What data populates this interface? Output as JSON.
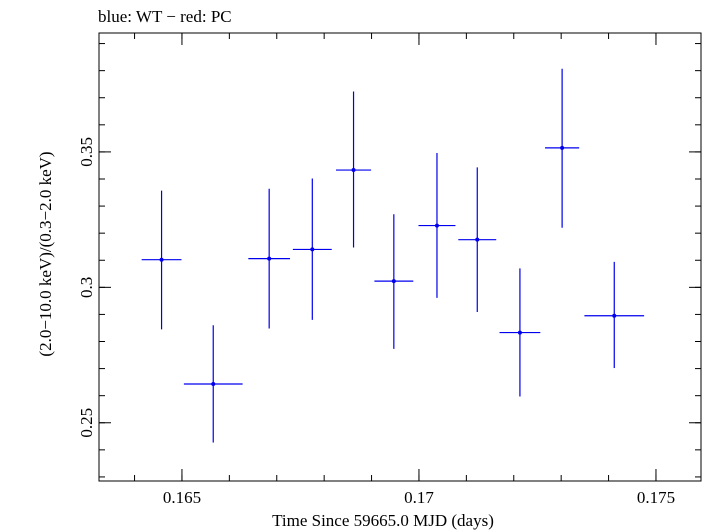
{
  "chart_data": {
    "type": "scatter",
    "title": "blue: WT − red: PC",
    "xlabel": "Time Since 59665.0 MJD (days)",
    "ylabel": "(2.0−10.0 keV)/(0.3−2.0 keV)",
    "xlim": [
      0.16325,
      0.17595
    ],
    "ylim": [
      0.2285,
      0.3939
    ],
    "x_ticks": [
      {
        "value": 0.165,
        "label": "0.165"
      },
      {
        "value": 0.17,
        "label": "0.17"
      },
      {
        "value": 0.175,
        "label": "0.175"
      }
    ],
    "y_ticks": [
      {
        "value": 0.25,
        "label": "0.25"
      },
      {
        "value": 0.3,
        "label": "0.3"
      },
      {
        "value": 0.35,
        "label": "0.35"
      }
    ],
    "x_minor_step": 0.001,
    "y_minor_step": 0.01,
    "grid": false,
    "series": [
      {
        "color": "#0000ee",
        "points": [
          {
            "x": 0.16457,
            "y": 0.3102,
            "xerr": 0.00042,
            "ylo": 0.2845,
            "yhi": 0.3357
          },
          {
            "x": 0.16566,
            "y": 0.2643,
            "xerr": 0.00062,
            "ylo": 0.2427,
            "yhi": 0.286
          },
          {
            "x": 0.16684,
            "y": 0.3106,
            "xerr": 0.00044,
            "ylo": 0.2848,
            "yhi": 0.3364
          },
          {
            "x": 0.16775,
            "y": 0.314,
            "xerr": 0.00041,
            "ylo": 0.288,
            "yhi": 0.3402
          },
          {
            "x": 0.16862,
            "y": 0.3433,
            "xerr": 0.00037,
            "ylo": 0.3147,
            "yhi": 0.3723
          },
          {
            "x": 0.16947,
            "y": 0.3023,
            "xerr": 0.00041,
            "ylo": 0.2773,
            "yhi": 0.327
          },
          {
            "x": 0.17038,
            "y": 0.3228,
            "xerr": 0.00039,
            "ylo": 0.2961,
            "yhi": 0.3496
          },
          {
            "x": 0.17123,
            "y": 0.3176,
            "xerr": 0.0004,
            "ylo": 0.2909,
            "yhi": 0.3443
          },
          {
            "x": 0.17213,
            "y": 0.2833,
            "xerr": 0.00043,
            "ylo": 0.2597,
            "yhi": 0.307
          },
          {
            "x": 0.17302,
            "y": 0.3515,
            "xerr": 0.00036,
            "ylo": 0.322,
            "yhi": 0.3807
          },
          {
            "x": 0.17412,
            "y": 0.2895,
            "xerr": 0.00063,
            "ylo": 0.2702,
            "yhi": 0.3094
          }
        ]
      }
    ]
  }
}
